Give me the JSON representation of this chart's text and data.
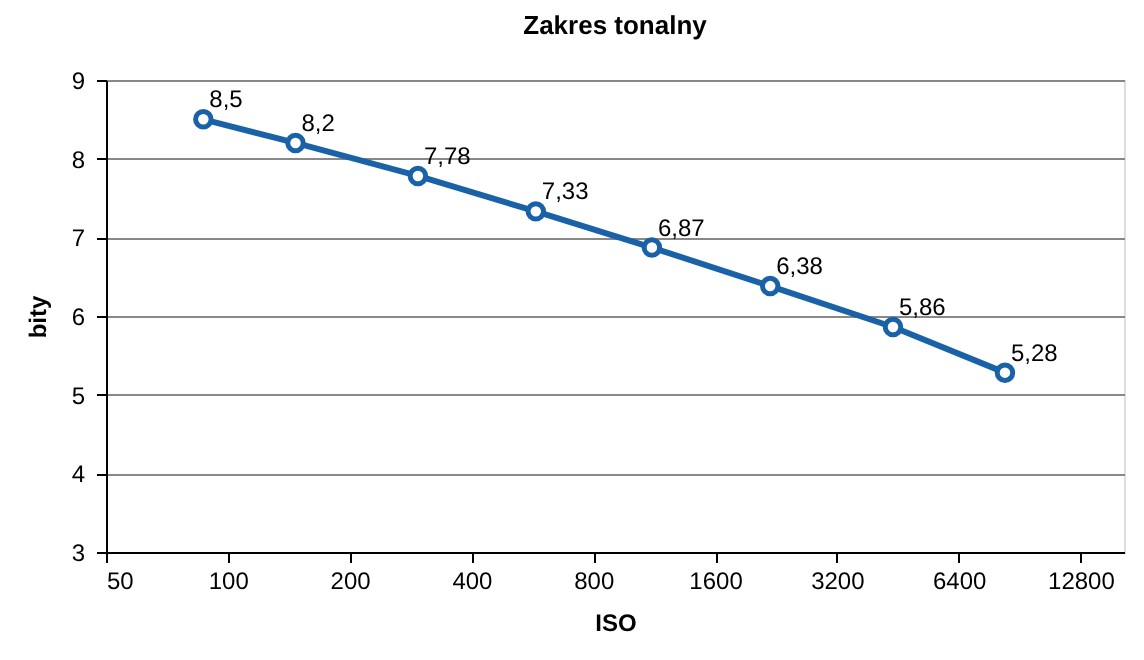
{
  "chart_data": {
    "type": "line",
    "title": "Zakres tonalny",
    "xlabel": "ISO",
    "ylabel": "bity",
    "x": [
      87,
      147,
      295,
      577,
      1117,
      2190,
      4405,
      8330
    ],
    "series": [
      {
        "color": "#1a62a8",
        "values": [
          8.5,
          8.2,
          7.78,
          7.33,
          6.87,
          6.38,
          5.86,
          5.28
        ],
        "value_labels": [
          "8,5",
          "8,2",
          "7,78",
          "7,33",
          "6,87",
          "6,38",
          "5,86",
          "5,28"
        ]
      }
    ],
    "log": "x",
    "xlim": [
      50,
      16400
    ],
    "xticks": [
      50,
      100,
      200,
      400,
      800,
      1600,
      3200,
      6400,
      12800
    ],
    "ylim": [
      3,
      9
    ],
    "yticks": [
      3,
      4,
      5,
      6,
      7,
      8,
      9
    ],
    "grid": "y",
    "marker": "circle",
    "line_style": "solid",
    "legend": false
  }
}
